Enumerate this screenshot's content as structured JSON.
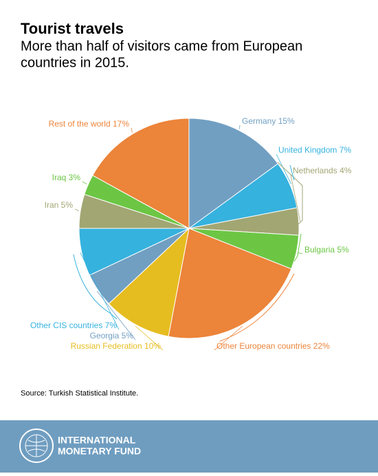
{
  "chart_data": {
    "type": "pie",
    "title": "Tourist travels",
    "subtitle": [
      "More than half of visitors came from European",
      "countries in 2015."
    ],
    "categories": [
      "Germany",
      "United Kingdom",
      "Netherlands",
      "Bulgaria",
      "Other European countries",
      "Russian Federation",
      "Georgia",
      "Other CIS countries",
      "Iran",
      "Iraq",
      "Rest of the world"
    ],
    "values": [
      15,
      7,
      4,
      5,
      22,
      10,
      5,
      7,
      5,
      3,
      17
    ],
    "value_labels": [
      "15%",
      "7%",
      "4%",
      "5%",
      "22%",
      "10%",
      "5%",
      "7%",
      "5%",
      "3%",
      "17%"
    ],
    "colors": [
      "#719fc2",
      "#35b2de",
      "#a2a673",
      "#6cc644",
      "#ec843a",
      "#e6bd20",
      "#719fc2",
      "#35b2de",
      "#a2a673",
      "#6cc644",
      "#ec843a"
    ],
    "source": "Source: Turkish Statistical Institute."
  },
  "footer": {
    "lines": [
      "INTERNATIONAL",
      "MONETARY FUND"
    ]
  }
}
